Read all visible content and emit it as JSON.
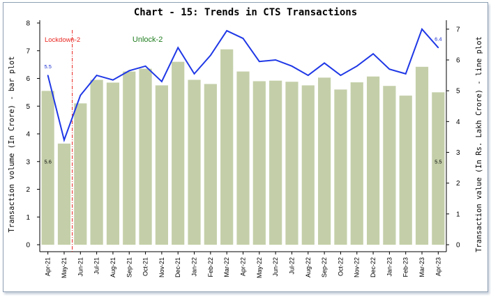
{
  "chart_data": {
    "type": "bar",
    "title": "Chart - 15: Trends in CTS Transactions",
    "ylabel": "Transaction volume (In Crore) - bar plot",
    "y2label": "Transaction value (In Rs. Lakh Crore) - line plot",
    "ylim": [
      0,
      8
    ],
    "y2lim": [
      0,
      7.2
    ],
    "yticks": [
      "0",
      "1",
      "2",
      "3",
      "4",
      "5",
      "6",
      "7",
      "8"
    ],
    "y2ticks": [
      "0",
      "1",
      "2",
      "3",
      "4",
      "5",
      "6",
      "7"
    ],
    "categories": [
      "Apr-21",
      "May-21",
      "Jun-21",
      "Jul-21",
      "Aug-21",
      "Sep-21",
      "Oct-21",
      "Nov-21",
      "Dec-21",
      "Jan-22",
      "Feb-22",
      "Mar-22",
      "Apr-22",
      "May-22",
      "Jun-22",
      "Jul-22",
      "Aug-22",
      "Sep-22",
      "Oct-22",
      "Nov-22",
      "Dec-22",
      "Jan-23",
      "Feb-23",
      "Mar-23",
      "Apr-23"
    ],
    "series": [
      {
        "name": "Transaction volume (In Crore)",
        "type": "bar",
        "axis": "left",
        "color": "#c4cfa9",
        "values": [
          5.55,
          3.65,
          5.1,
          5.95,
          5.85,
          6.25,
          6.35,
          5.75,
          6.6,
          5.95,
          5.8,
          7.05,
          6.25,
          5.9,
          5.92,
          5.88,
          5.75,
          6.03,
          5.6,
          5.86,
          6.07,
          5.73,
          5.38,
          6.42,
          5.5
        ]
      },
      {
        "name": "Transaction value (In Rs. Lakh Crore)",
        "type": "line",
        "axis": "right",
        "color": "#1f38e6",
        "values": [
          5.5,
          3.4,
          4.85,
          5.5,
          5.35,
          5.65,
          5.8,
          5.3,
          6.4,
          5.55,
          6.15,
          6.95,
          6.7,
          5.95,
          6.0,
          5.8,
          5.5,
          5.9,
          5.5,
          5.8,
          6.2,
          5.7,
          5.55,
          7.0,
          6.4
        ]
      }
    ],
    "data_labels": [
      {
        "series": "line",
        "index": 0,
        "text": "5.5"
      },
      {
        "series": "bar",
        "index": 0,
        "text": "5.6"
      },
      {
        "series": "line",
        "index": 24,
        "text": "6.4"
      },
      {
        "series": "bar",
        "index": 24,
        "text": "5.5"
      }
    ],
    "annotations": [
      {
        "text": "Lockdown-2",
        "color": "#e8251f"
      },
      {
        "text": "Unlock-2",
        "color": "#1f7d1f"
      }
    ],
    "divider_after_category": "May-21",
    "grid": false,
    "legend": "none"
  }
}
